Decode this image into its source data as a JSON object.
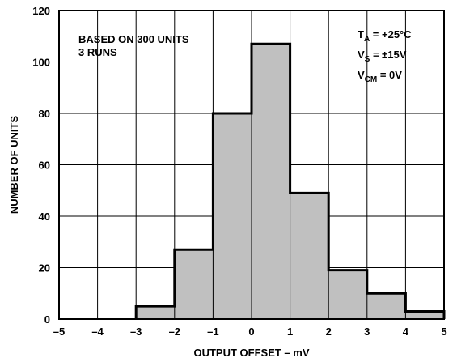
{
  "chart_data": {
    "type": "bar",
    "title": "",
    "xlabel": "OUTPUT OFFSET – mV",
    "ylabel": "NUMBER OF UNITS",
    "xlim": [
      -5,
      5
    ],
    "ylim": [
      0,
      120
    ],
    "x_ticks": [
      "–5",
      "–4",
      "–3",
      "–2",
      "–1",
      "0",
      "1",
      "2",
      "3",
      "4",
      "5"
    ],
    "y_ticks": [
      "0",
      "20",
      "40",
      "60",
      "80",
      "100",
      "120"
    ],
    "bins": [
      {
        "from": -3,
        "to": -2,
        "value": 5
      },
      {
        "from": -2,
        "to": -1,
        "value": 27
      },
      {
        "from": -1,
        "to": 0,
        "value": 80
      },
      {
        "from": 0,
        "to": 1,
        "value": 107
      },
      {
        "from": 1,
        "to": 2,
        "value": 49
      },
      {
        "from": 2,
        "to": 3,
        "value": 19
      },
      {
        "from": 3,
        "to": 4,
        "value": 10
      },
      {
        "from": 4,
        "to": 5,
        "value": 3
      }
    ],
    "grid": true,
    "colors": {
      "bar_fill": "#c0c0c0",
      "bar_edge": "#000000",
      "grid": "#000000"
    },
    "annotations": {
      "left_line1": "BASED ON 300 UNITS",
      "left_line2": "3 RUNS",
      "ta": {
        "symbol": "T",
        "sub": "A",
        "value": " = +25°C"
      },
      "vs": {
        "symbol": "V",
        "sub": "S",
        "value": " = ±15V"
      },
      "vcm": {
        "symbol": "V",
        "sub": "CM",
        "value": " = 0V"
      }
    }
  }
}
